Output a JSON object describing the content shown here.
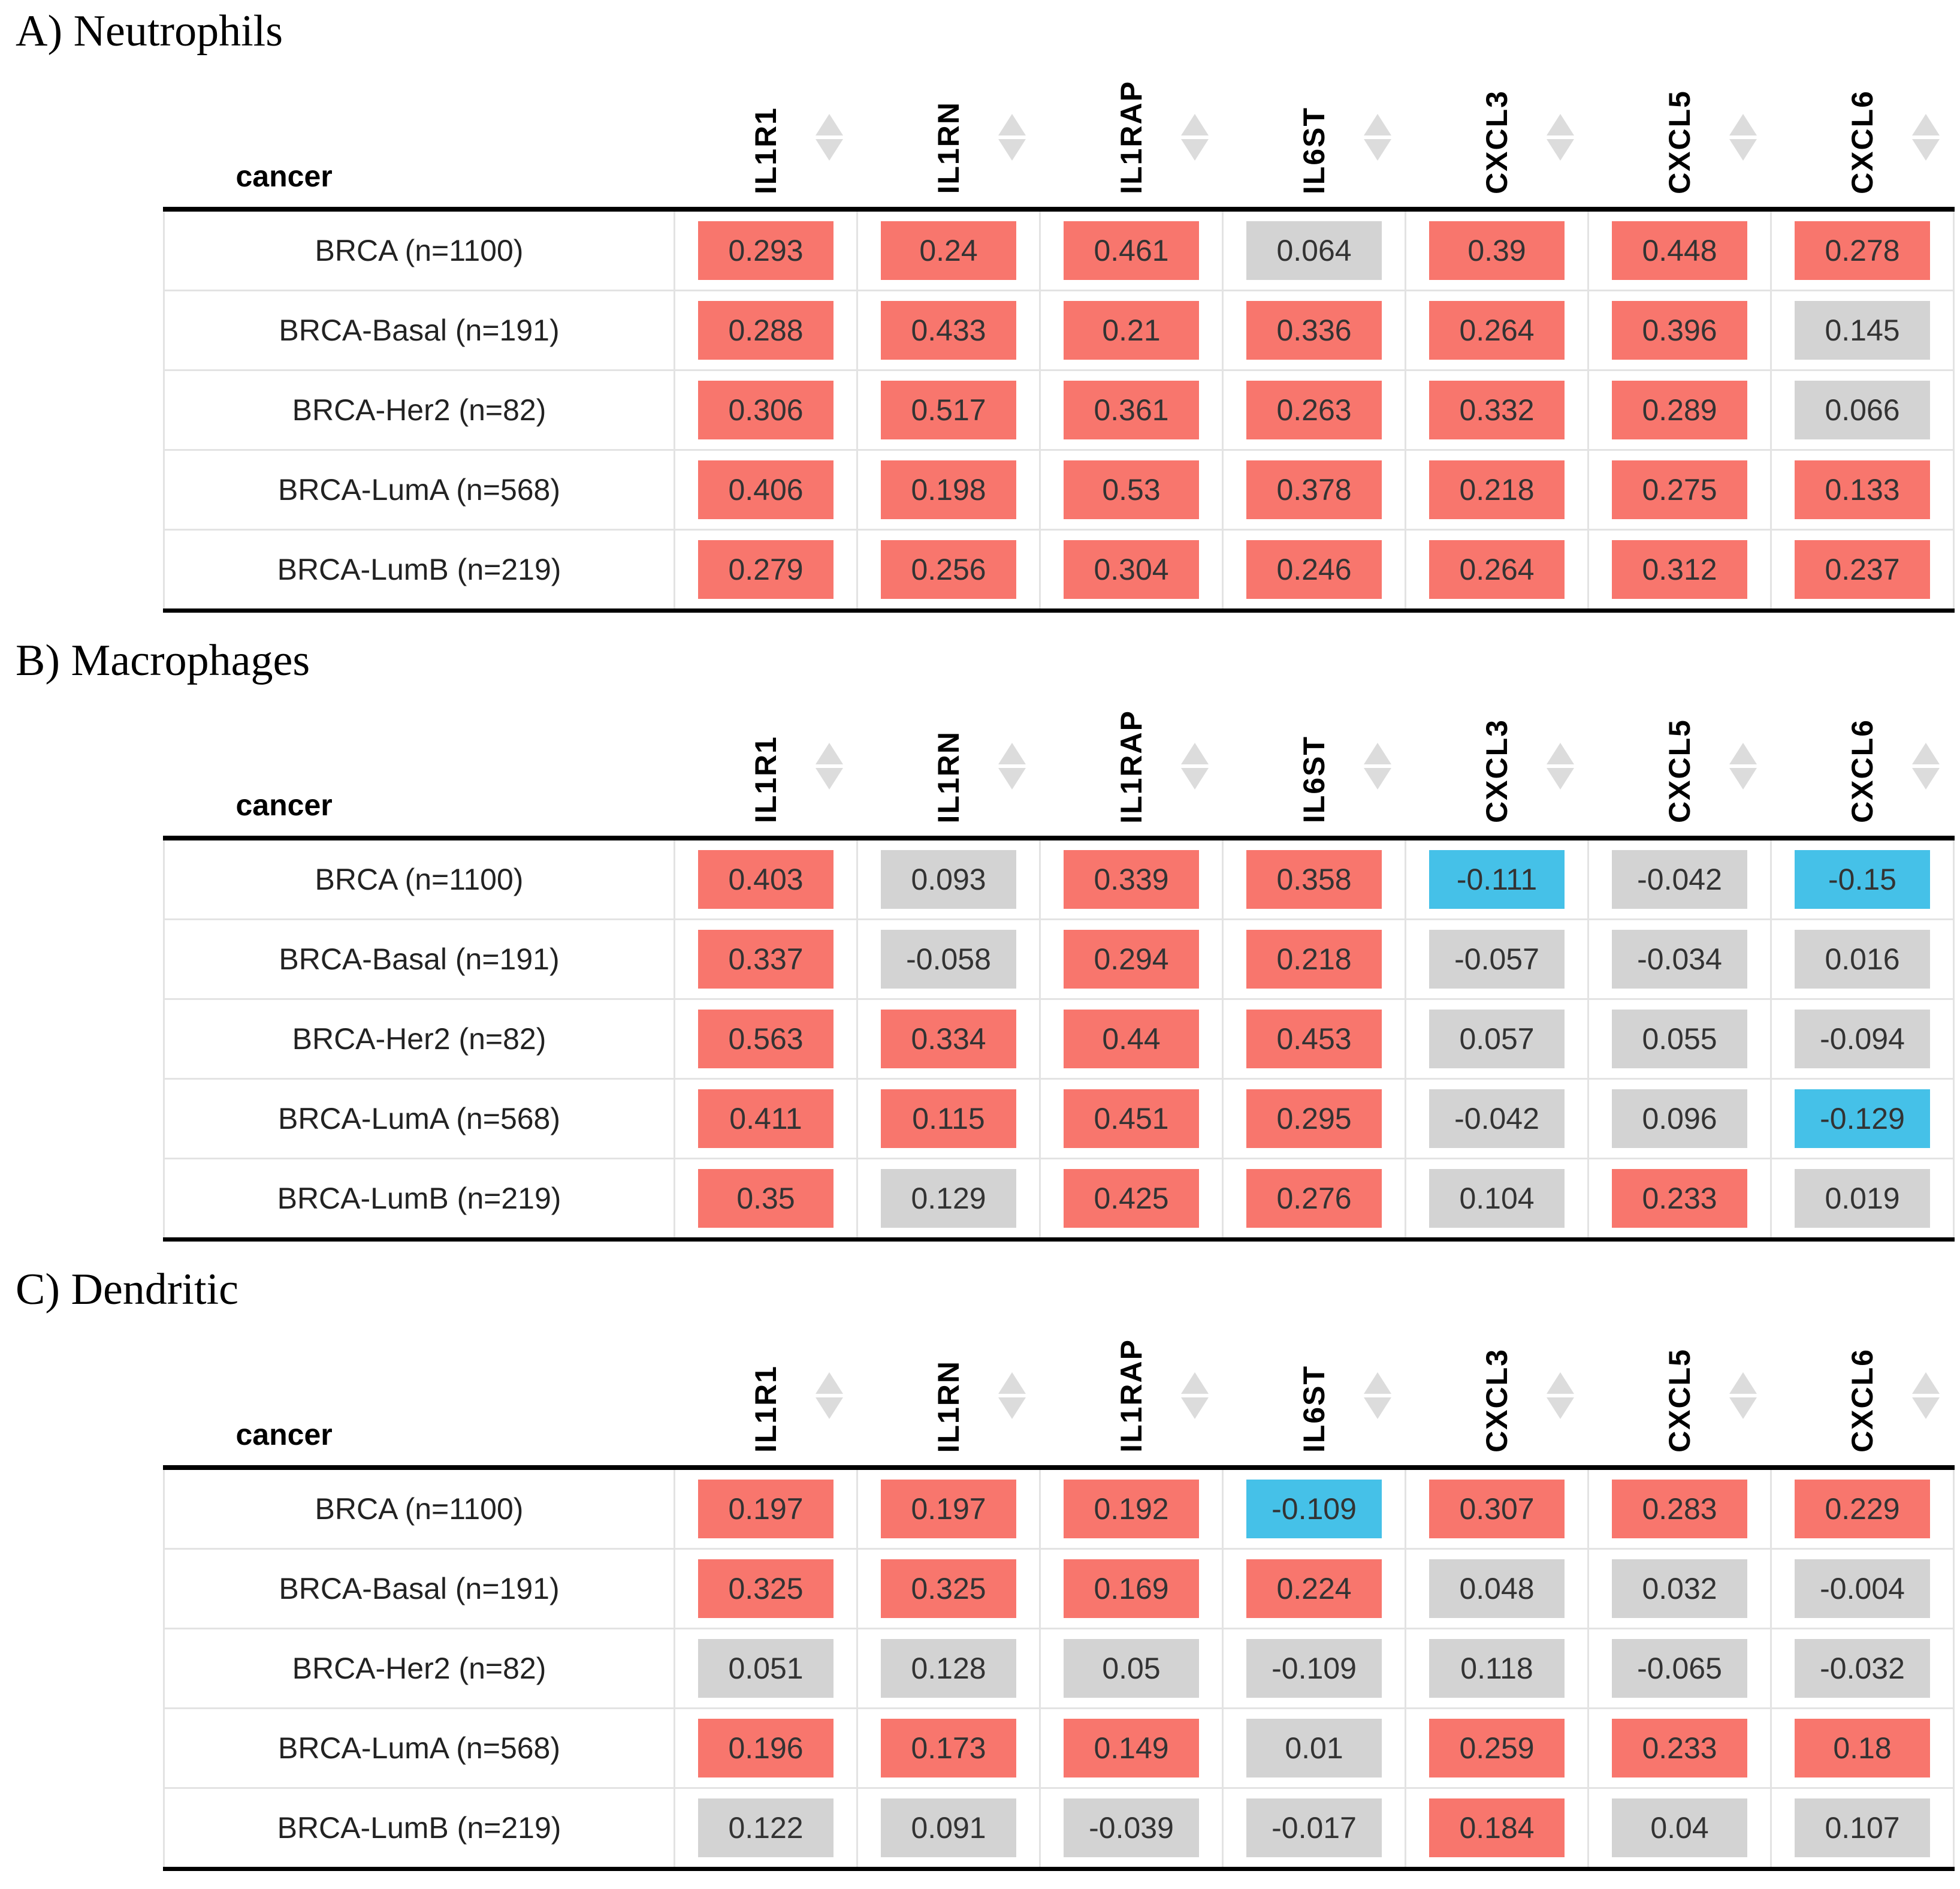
{
  "colors": {
    "significant_positive": "#F8766D",
    "significant_negative": "#45C1E8",
    "not_significant": "#D3D3D3",
    "heavy_border": "#000000",
    "grid_line": "#e3e3e3",
    "sort_arrow": "#dcdcdc"
  },
  "chart_data": [
    {
      "type": "table",
      "panel": "A",
      "title": "A) Neutrophils",
      "cell_type": "Neutrophils",
      "row_header": "cancer",
      "columns": [
        "IL1R1",
        "IL1RN",
        "IL1RAP",
        "IL6ST",
        "CXCL3",
        "CXCL5",
        "CXCL6"
      ],
      "rows": [
        "BRCA (n=1100)",
        "BRCA-Basal (n=191)",
        "BRCA-Her2 (n=82)",
        "BRCA-LumA (n=568)",
        "BRCA-LumB (n=219)"
      ],
      "values": [
        [
          0.293,
          0.24,
          0.461,
          0.064,
          0.39,
          0.448,
          0.278
        ],
        [
          0.288,
          0.433,
          0.21,
          0.336,
          0.264,
          0.396,
          0.145
        ],
        [
          0.306,
          0.517,
          0.361,
          0.263,
          0.332,
          0.289,
          0.066
        ],
        [
          0.406,
          0.198,
          0.53,
          0.378,
          0.218,
          0.275,
          0.133
        ],
        [
          0.279,
          0.256,
          0.304,
          0.246,
          0.264,
          0.312,
          0.237
        ]
      ],
      "cell_colors": [
        [
          "pos",
          "pos",
          "pos",
          "ns",
          "pos",
          "pos",
          "pos"
        ],
        [
          "pos",
          "pos",
          "pos",
          "pos",
          "pos",
          "pos",
          "ns"
        ],
        [
          "pos",
          "pos",
          "pos",
          "pos",
          "pos",
          "pos",
          "ns"
        ],
        [
          "pos",
          "pos",
          "pos",
          "pos",
          "pos",
          "pos",
          "pos"
        ],
        [
          "pos",
          "pos",
          "pos",
          "pos",
          "pos",
          "pos",
          "pos"
        ]
      ]
    },
    {
      "type": "table",
      "panel": "B",
      "title": "B) Macrophages",
      "cell_type": "Macrophages",
      "row_header": "cancer",
      "columns": [
        "IL1R1",
        "IL1RN",
        "IL1RAP",
        "IL6ST",
        "CXCL3",
        "CXCL5",
        "CXCL6"
      ],
      "rows": [
        "BRCA (n=1100)",
        "BRCA-Basal (n=191)",
        "BRCA-Her2 (n=82)",
        "BRCA-LumA (n=568)",
        "BRCA-LumB (n=219)"
      ],
      "values": [
        [
          0.403,
          0.093,
          0.339,
          0.358,
          -0.111,
          -0.042,
          -0.15
        ],
        [
          0.337,
          -0.058,
          0.294,
          0.218,
          -0.057,
          -0.034,
          0.016
        ],
        [
          0.563,
          0.334,
          0.44,
          0.453,
          0.057,
          0.055,
          -0.094
        ],
        [
          0.411,
          0.115,
          0.451,
          0.295,
          -0.042,
          0.096,
          -0.129
        ],
        [
          0.35,
          0.129,
          0.425,
          0.276,
          0.104,
          0.233,
          0.019
        ]
      ],
      "cell_colors": [
        [
          "pos",
          "ns",
          "pos",
          "pos",
          "neg",
          "ns",
          "neg"
        ],
        [
          "pos",
          "ns",
          "pos",
          "pos",
          "ns",
          "ns",
          "ns"
        ],
        [
          "pos",
          "pos",
          "pos",
          "pos",
          "ns",
          "ns",
          "ns"
        ],
        [
          "pos",
          "pos",
          "pos",
          "pos",
          "ns",
          "ns",
          "neg"
        ],
        [
          "pos",
          "ns",
          "pos",
          "pos",
          "ns",
          "pos",
          "ns"
        ]
      ]
    },
    {
      "type": "table",
      "panel": "C",
      "title": "C) Dendritic",
      "cell_type": "Dendritic",
      "row_header": "cancer",
      "columns": [
        "IL1R1",
        "IL1RN",
        "IL1RAP",
        "IL6ST",
        "CXCL3",
        "CXCL5",
        "CXCL6"
      ],
      "rows": [
        "BRCA (n=1100)",
        "BRCA-Basal (n=191)",
        "BRCA-Her2 (n=82)",
        "BRCA-LumA (n=568)",
        "BRCA-LumB (n=219)"
      ],
      "values": [
        [
          0.197,
          0.197,
          0.192,
          -0.109,
          0.307,
          0.283,
          0.229
        ],
        [
          0.325,
          0.325,
          0.169,
          0.224,
          0.048,
          0.032,
          -0.004
        ],
        [
          0.051,
          0.128,
          0.05,
          -0.109,
          0.118,
          -0.065,
          -0.032
        ],
        [
          0.196,
          0.173,
          0.149,
          0.01,
          0.259,
          0.233,
          0.18
        ],
        [
          0.122,
          0.091,
          -0.039,
          -0.017,
          0.184,
          0.04,
          0.107
        ]
      ],
      "cell_colors": [
        [
          "pos",
          "pos",
          "pos",
          "neg",
          "pos",
          "pos",
          "pos"
        ],
        [
          "pos",
          "pos",
          "pos",
          "pos",
          "ns",
          "ns",
          "ns"
        ],
        [
          "ns",
          "ns",
          "ns",
          "ns",
          "ns",
          "ns",
          "ns"
        ],
        [
          "pos",
          "pos",
          "pos",
          "ns",
          "pos",
          "pos",
          "pos"
        ],
        [
          "ns",
          "ns",
          "ns",
          "ns",
          "pos",
          "ns",
          "ns"
        ]
      ]
    }
  ]
}
